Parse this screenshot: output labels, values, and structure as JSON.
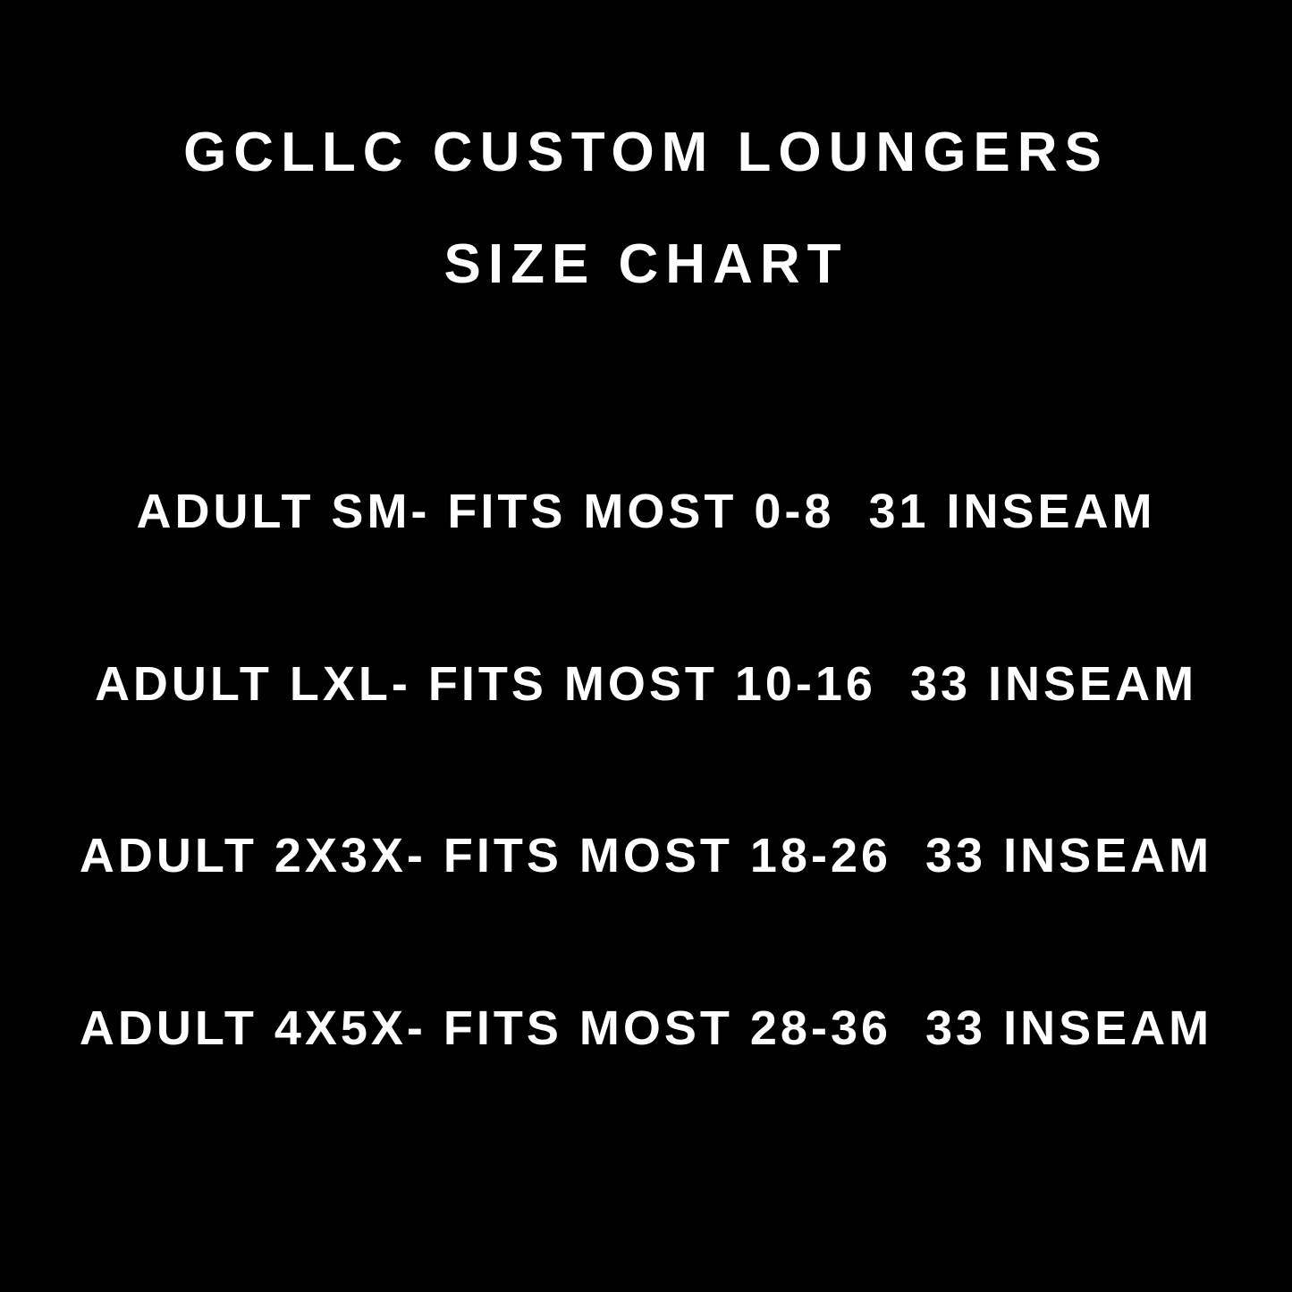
{
  "title": {
    "line1": "GCLLC CUSTOM LOUNGERS",
    "line2": "SIZE CHART"
  },
  "sizes": [
    {
      "text": "ADULT SM- FITS MOST 0-8  31 INSEAM"
    },
    {
      "text": "ADULT LXL- FITS MOST 10-16  33 INSEAM"
    },
    {
      "text": "ADULT 2X3X- FITS MOST 18-26  33 INSEAM"
    },
    {
      "text": "ADULT 4X5X- FITS MOST 28-36  33 INSEAM"
    }
  ],
  "colors": {
    "background": "#000000",
    "text": "#ffffff"
  }
}
